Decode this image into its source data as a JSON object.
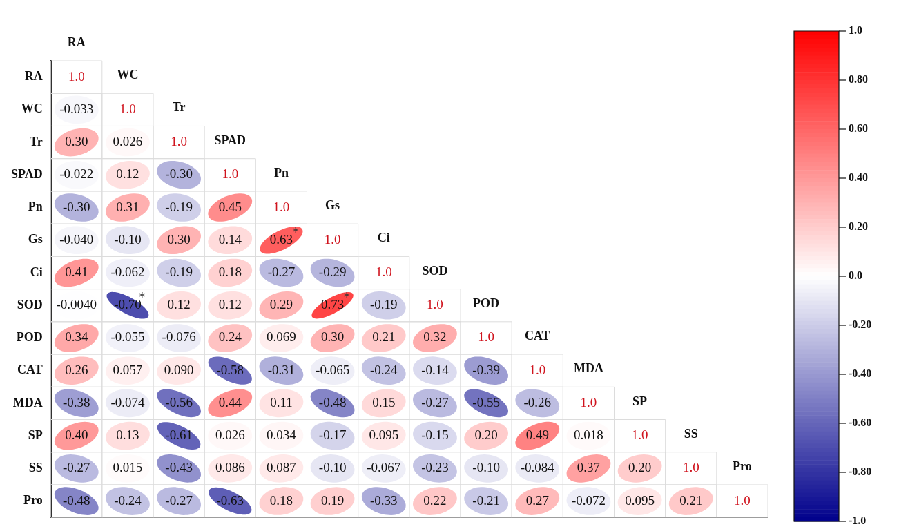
{
  "chart_data": {
    "type": "heatmap",
    "categories": [
      "RA",
      "WC",
      "Tr",
      "SPAD",
      "Pn",
      "Gs",
      "Ci",
      "SOD",
      "POD",
      "CAT",
      "MDA",
      "SP",
      "SS",
      "Pro"
    ],
    "y_categories": [
      "RA",
      "WC",
      "Tr",
      "SPAD",
      "Pn",
      "Gs",
      "Ci",
      "SOD",
      "POD",
      "CAT",
      "MDA",
      "SP",
      "SS",
      "Pro"
    ],
    "cells": [
      [
        null,
        null,
        null,
        null,
        null,
        null,
        null,
        null,
        null,
        null,
        null,
        null,
        null,
        null
      ],
      [
        -0.033,
        null,
        null,
        null,
        null,
        null,
        null,
        null,
        null,
        null,
        null,
        null,
        null,
        null
      ],
      [
        0.3,
        0.026,
        null,
        null,
        null,
        null,
        null,
        null,
        null,
        null,
        null,
        null,
        null,
        null
      ],
      [
        -0.022,
        0.12,
        -0.3,
        null,
        null,
        null,
        null,
        null,
        null,
        null,
        null,
        null,
        null,
        null
      ],
      [
        -0.3,
        0.31,
        -0.19,
        0.45,
        null,
        null,
        null,
        null,
        null,
        null,
        null,
        null,
        null,
        null
      ],
      [
        -0.04,
        -0.1,
        0.3,
        0.14,
        0.63,
        null,
        null,
        null,
        null,
        null,
        null,
        null,
        null,
        null
      ],
      [
        0.41,
        -0.062,
        -0.19,
        0.18,
        -0.27,
        -0.29,
        null,
        null,
        null,
        null,
        null,
        null,
        null,
        null
      ],
      [
        -0.004,
        -0.7,
        0.12,
        0.12,
        0.29,
        0.73,
        -0.19,
        null,
        null,
        null,
        null,
        null,
        null,
        null
      ],
      [
        0.34,
        -0.055,
        -0.076,
        0.24,
        0.069,
        0.3,
        0.21,
        0.32,
        null,
        null,
        null,
        null,
        null,
        null
      ],
      [
        0.26,
        0.057,
        0.09,
        -0.58,
        -0.31,
        -0.065,
        -0.24,
        -0.14,
        -0.39,
        null,
        null,
        null,
        null,
        null
      ],
      [
        -0.38,
        -0.074,
        -0.56,
        0.44,
        0.11,
        -0.48,
        0.15,
        -0.27,
        -0.55,
        -0.26,
        null,
        null,
        null,
        null
      ],
      [
        0.4,
        0.13,
        -0.61,
        0.026,
        0.034,
        -0.17,
        0.095,
        -0.15,
        0.2,
        0.49,
        0.018,
        null,
        null,
        null
      ],
      [
        -0.27,
        0.015,
        -0.43,
        0.086,
        0.087,
        -0.1,
        -0.067,
        -0.23,
        -0.1,
        -0.084,
        0.37,
        0.2,
        null,
        null
      ],
      [
        -0.48,
        -0.24,
        -0.27,
        -0.63,
        0.18,
        0.19,
        -0.33,
        0.22,
        -0.21,
        0.27,
        -0.072,
        0.095,
        0.21,
        null
      ]
    ],
    "cell_labels": [
      [
        "1.0",
        null,
        null,
        null,
        null,
        null,
        null,
        null,
        null,
        null,
        null,
        null,
        null,
        null
      ],
      [
        "-0.033",
        "1.0",
        null,
        null,
        null,
        null,
        null,
        null,
        null,
        null,
        null,
        null,
        null,
        null
      ],
      [
        "0.30",
        "0.026",
        "1.0",
        null,
        null,
        null,
        null,
        null,
        null,
        null,
        null,
        null,
        null,
        null
      ],
      [
        "-0.022",
        "0.12",
        "-0.30",
        "1.0",
        null,
        null,
        null,
        null,
        null,
        null,
        null,
        null,
        null,
        null
      ],
      [
        "-0.30",
        "0.31",
        "-0.19",
        "0.45",
        "1.0",
        null,
        null,
        null,
        null,
        null,
        null,
        null,
        null,
        null
      ],
      [
        "-0.040",
        "-0.10",
        "0.30",
        "0.14",
        "0.63*",
        "1.0",
        null,
        null,
        null,
        null,
        null,
        null,
        null,
        null
      ],
      [
        "0.41",
        "-0.062",
        "-0.19",
        "0.18",
        "-0.27",
        "-0.29",
        "1.0",
        null,
        null,
        null,
        null,
        null,
        null,
        null
      ],
      [
        "-0.0040",
        "-0.70*",
        "0.12",
        "0.12",
        "0.29",
        "0.73*",
        "-0.19",
        "1.0",
        null,
        null,
        null,
        null,
        null,
        null
      ],
      [
        "0.34",
        "-0.055",
        "-0.076",
        "0.24",
        "0.069",
        "0.30",
        "0.21",
        "0.32",
        "1.0",
        null,
        null,
        null,
        null,
        null
      ],
      [
        "0.26",
        "0.057",
        "0.090",
        "-0.58",
        "-0.31",
        "-0.065",
        "-0.24",
        "-0.14",
        "-0.39",
        "1.0",
        null,
        null,
        null,
        null
      ],
      [
        "-0.38",
        "-0.074",
        "-0.56",
        "0.44",
        "0.11",
        "-0.48",
        "0.15",
        "-0.27",
        "-0.55",
        "-0.26",
        "1.0",
        null,
        null,
        null
      ],
      [
        "0.40",
        "0.13",
        "-0.61",
        "0.026",
        "0.034",
        "-0.17",
        "0.095",
        "-0.15",
        "0.20",
        "0.49",
        "0.018",
        "1.0",
        null,
        null
      ],
      [
        "-0.27",
        "0.015",
        "-0.43",
        "0.086",
        "0.087",
        "-0.10",
        "-0.067",
        "-0.23",
        "-0.10",
        "-0.084",
        "0.37",
        "0.20",
        "1.0",
        null
      ],
      [
        "-0.48",
        "-0.24",
        "-0.27",
        "-0.63",
        "0.18",
        "0.19",
        "-0.33",
        "0.22",
        "-0.21",
        "0.27",
        "-0.072",
        "0.095",
        "0.21",
        "1.0"
      ]
    ],
    "clim": [
      -1.0,
      1.0
    ],
    "cticks": [
      {
        "value": 1.0,
        "label": "1.0"
      },
      {
        "value": 0.8,
        "label": "0.80"
      },
      {
        "value": 0.6,
        "label": "0.60"
      },
      {
        "value": 0.4,
        "label": "0.40"
      },
      {
        "value": 0.2,
        "label": "0.20"
      },
      {
        "value": 0.0,
        "label": "0.0"
      },
      {
        "value": -0.2,
        "label": "-0.20"
      },
      {
        "value": -0.4,
        "label": "-0.40"
      },
      {
        "value": -0.6,
        "label": "-0.60"
      },
      {
        "value": -0.8,
        "label": "-0.80"
      },
      {
        "value": -1.0,
        "label": "-1.0"
      }
    ]
  }
}
